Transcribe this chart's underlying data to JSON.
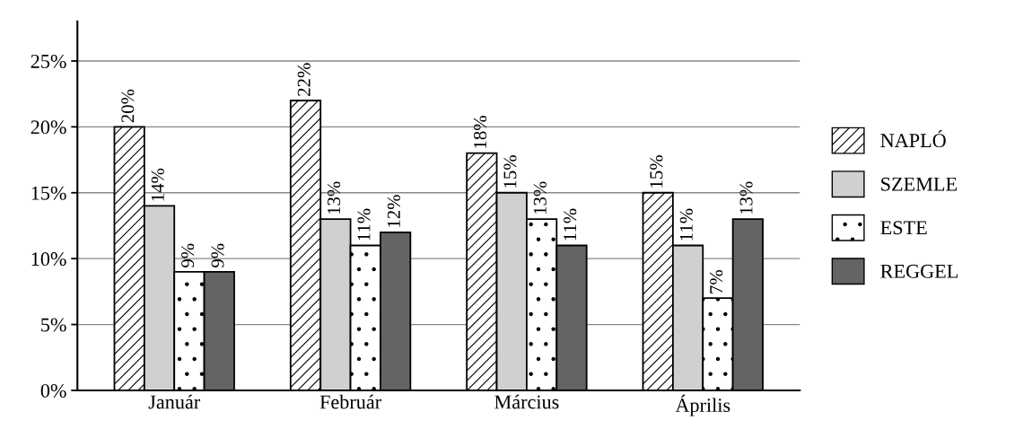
{
  "chart_data": {
    "type": "bar",
    "categories": [
      "Január",
      "Február",
      "Március",
      "Április"
    ],
    "series": [
      {
        "name": "NAPLÓ",
        "color": "#ffffff",
        "values": [
          20,
          22,
          18,
          15
        ],
        "value_labels": [
          "20%",
          "22%",
          "18%",
          "15%"
        ]
      },
      {
        "name": "SZEMLE",
        "color": "#d0d0d0",
        "values": [
          14,
          13,
          15,
          11
        ],
        "value_labels": [
          "14%",
          "13%",
          "15%",
          "11%"
        ]
      },
      {
        "name": "ESTE",
        "color": "#ffffff",
        "values": [
          9,
          11,
          13,
          7
        ],
        "value_labels": [
          "9%",
          "11%",
          "13%",
          "7%"
        ]
      },
      {
        "name": "REGGEL",
        "color": "#646466",
        "values": [
          9,
          12,
          11,
          13
        ],
        "value_labels": [
          "9%",
          "12%",
          "11%",
          "13%"
        ]
      }
    ],
    "ylim": [
      0,
      28
    ],
    "yticks": [
      {
        "value": 0,
        "label": "0%"
      },
      {
        "value": 5,
        "label": "5%"
      },
      {
        "value": 10,
        "label": "10%"
      },
      {
        "value": 15,
        "label": "15%"
      },
      {
        "value": 20,
        "label": "20%"
      },
      {
        "value": 25,
        "label": "25%"
      }
    ],
    "grid": "y",
    "legend": "right"
  }
}
